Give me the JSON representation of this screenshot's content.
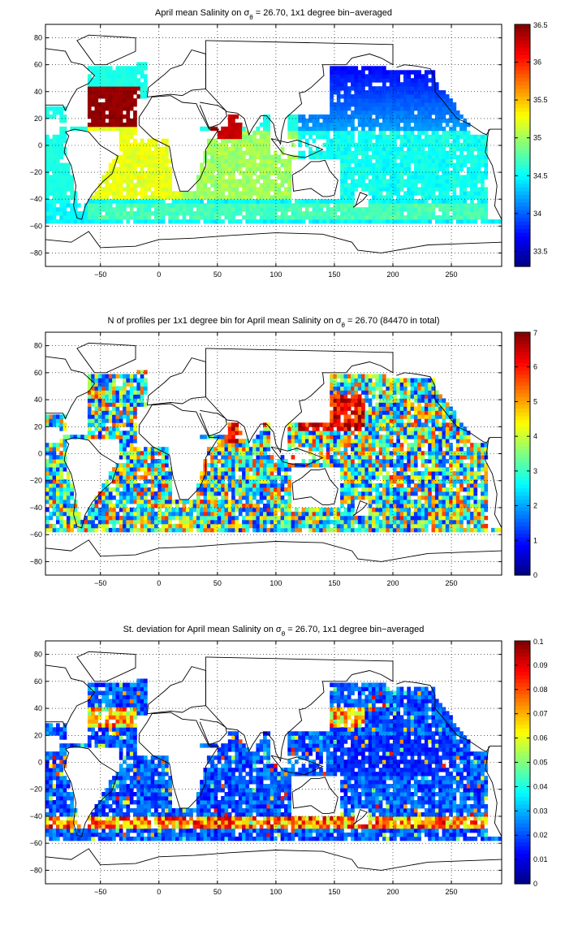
{
  "chart_data": [
    {
      "type": "heatmap",
      "title_parts": [
        "April mean Salinity on σ",
        "θ",
        " = 26.70, 1x1 degree bin−averaged"
      ],
      "xlabel": "",
      "ylabel": "",
      "xlim": [
        -97,
        293
      ],
      "ylim": [
        -90,
        90
      ],
      "xticks": [
        -50,
        0,
        50,
        100,
        150,
        200,
        250
      ],
      "yticks": [
        -80,
        -60,
        -40,
        -20,
        0,
        20,
        40,
        60,
        80
      ],
      "grid": true,
      "colorbar": {
        "min": 33.3,
        "max": 36.5,
        "ticks": [
          33.5,
          34,
          34.5,
          35,
          35.5,
          36,
          36.5
        ],
        "labels": [
          "33.5",
          "34",
          "34.5",
          "35",
          "35.5",
          "36",
          "36.5"
        ],
        "colormap": "jet"
      },
      "field": "salinity"
    },
    {
      "type": "heatmap",
      "title_parts": [
        "N of profiles per 1x1 degree bin for April mean Salinity on σ",
        "θ",
        " = 26.70 (84470 in total)"
      ],
      "xlabel": "",
      "ylabel": "",
      "xlim": [
        -97,
        293
      ],
      "ylim": [
        -90,
        90
      ],
      "xticks": [
        -50,
        0,
        50,
        100,
        150,
        200,
        250
      ],
      "yticks": [
        -80,
        -60,
        -40,
        -20,
        0,
        20,
        40,
        60,
        80
      ],
      "grid": true,
      "colorbar": {
        "min": 0,
        "max": 7,
        "ticks": [
          0,
          1,
          2,
          3,
          4,
          5,
          6,
          7
        ],
        "labels": [
          "0",
          "1",
          "2",
          "3",
          "4",
          "5",
          "6",
          "7"
        ],
        "colormap": "jet"
      },
      "total_profiles": 84470,
      "field": "count"
    },
    {
      "type": "heatmap",
      "title_parts": [
        "St. deviation for April mean Salinity on σ",
        "θ",
        " = 26.70, 1x1 degree bin−averaged"
      ],
      "xlabel": "",
      "ylabel": "",
      "xlim": [
        -97,
        293
      ],
      "ylim": [
        -90,
        90
      ],
      "xticks": [
        -50,
        0,
        50,
        100,
        150,
        200,
        250
      ],
      "yticks": [
        -80,
        -60,
        -40,
        -20,
        0,
        20,
        40,
        60,
        80
      ],
      "grid": true,
      "colorbar": {
        "min": 0,
        "max": 0.1,
        "ticks": [
          0,
          0.01,
          0.02,
          0.03,
          0.04,
          0.05,
          0.06,
          0.07,
          0.08,
          0.09,
          0.1
        ],
        "labels": [
          "0",
          "0.01",
          "0.02",
          "0.03",
          "0.04",
          "0.05",
          "0.06",
          "0.07",
          "0.08",
          "0.09",
          "0.1"
        ],
        "colormap": "jet"
      },
      "field": "std"
    }
  ]
}
